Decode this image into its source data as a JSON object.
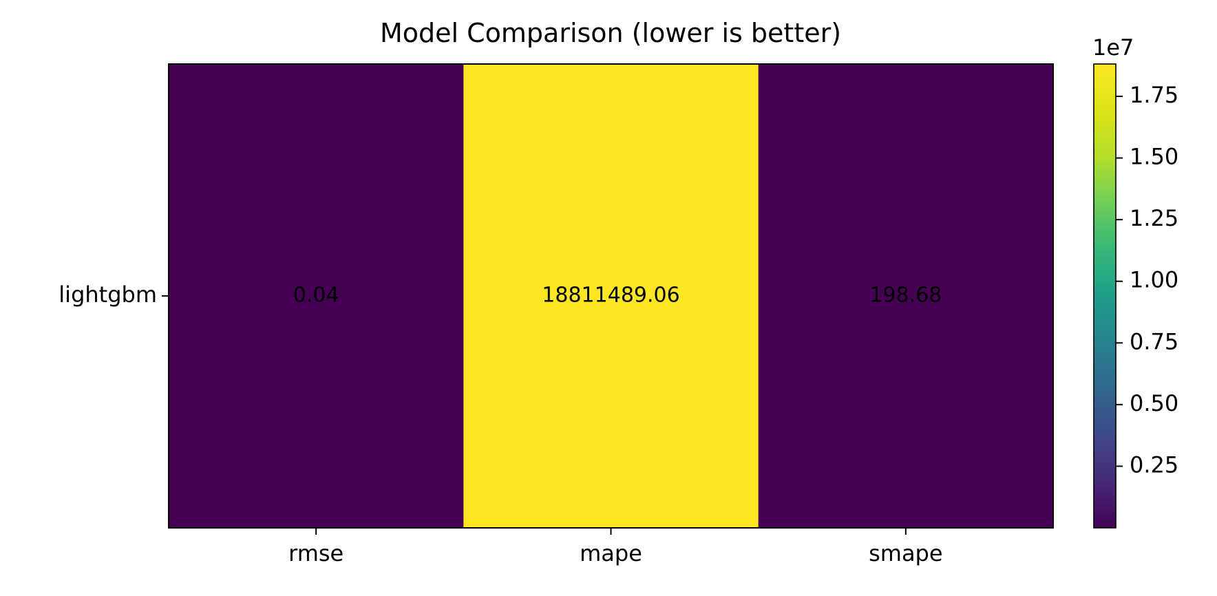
{
  "chart_data": {
    "type": "heatmap",
    "title": "Model Comparison (lower is better)",
    "xlabel": "",
    "ylabel": "",
    "x_categories": [
      "rmse",
      "mape",
      "smape"
    ],
    "y_categories": [
      "lightgbm"
    ],
    "values": [
      [
        0.04,
        18811489.06,
        198.68
      ]
    ],
    "cell_labels": [
      [
        "0.04",
        "18811489.06",
        "198.68"
      ]
    ],
    "colormap": "viridis",
    "colorbar": {
      "range": [
        0.04,
        18811489.06
      ],
      "multiplier_label": "1e7",
      "ticks": [
        0.25,
        0.5,
        0.75,
        1.0,
        1.25,
        1.5,
        1.75
      ],
      "tick_labels": [
        "0.25",
        "0.50",
        "0.75",
        "1.00",
        "1.25",
        "1.50",
        "1.75"
      ],
      "tick_scale": 10000000
    },
    "grid": false
  }
}
